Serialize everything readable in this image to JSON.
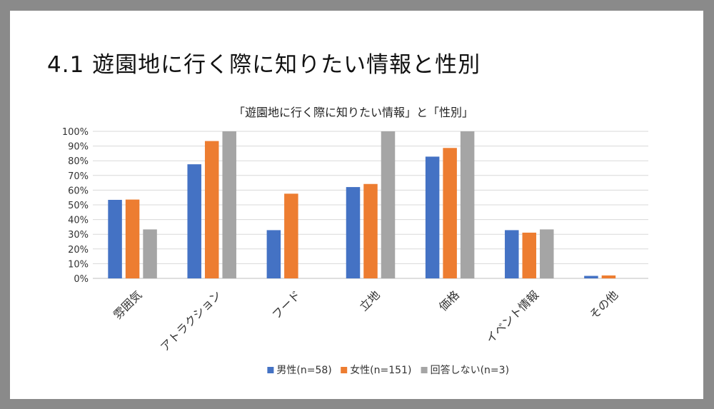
{
  "slide": {
    "title": "4.1 遊園地に行く際に知りたい情報と性別"
  },
  "chart_data": {
    "type": "bar",
    "title": "「遊園地に行く際に知りたい情報」と「性別」",
    "categories": [
      "雰囲気",
      "アトラクション",
      "フード",
      "立地",
      "価格",
      "イベント情報",
      "その他"
    ],
    "series": [
      {
        "name": "男性(n=58)",
        "color": "#4472C4",
        "values": [
          53.4,
          77.6,
          32.8,
          62.1,
          82.8,
          32.8,
          1.7
        ]
      },
      {
        "name": "女性(n=151)",
        "color": "#ED7D31",
        "values": [
          53.6,
          93.4,
          57.6,
          64.2,
          88.7,
          31.1,
          2.0
        ]
      },
      {
        "name": "回答しない(n=3)",
        "color": "#A5A5A5",
        "values": [
          33.3,
          100,
          0,
          100,
          100,
          33.3,
          0
        ]
      }
    ],
    "ylim": [
      0,
      100
    ],
    "yticks": [
      "0%",
      "10%",
      "20%",
      "30%",
      "40%",
      "50%",
      "60%",
      "70%",
      "80%",
      "90%",
      "100%"
    ],
    "grid": true,
    "legend_position": "bottom"
  }
}
